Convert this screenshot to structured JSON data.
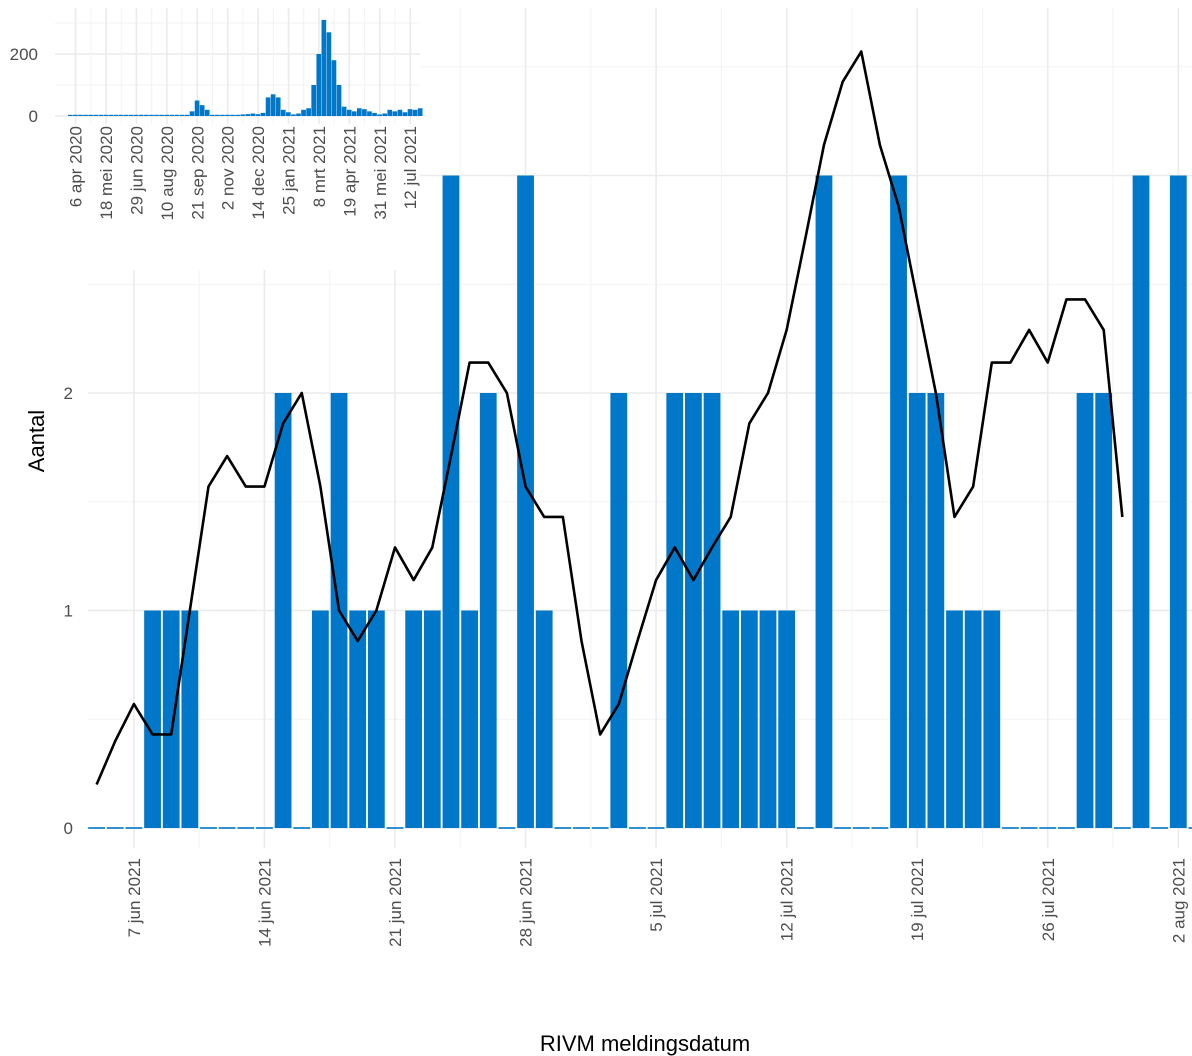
{
  "chart_data": [
    {
      "type": "bar",
      "role": "main",
      "xlabel": "RIVM meldingsdatum",
      "ylabel": "Aantal",
      "ylim": [
        0,
        3
      ],
      "y_ticks": [
        0,
        1,
        2,
        3
      ],
      "grid": true,
      "bar_color": "#0077c8",
      "line_color": "#000000",
      "x_ticks": [
        {
          "day": 2,
          "label": "7 jun 2021"
        },
        {
          "day": 9,
          "label": "14 jun 2021"
        },
        {
          "day": 16,
          "label": "21 jun 2021"
        },
        {
          "day": 23,
          "label": "28 jun 2021"
        },
        {
          "day": 30,
          "label": "5 jul 2021"
        },
        {
          "day": 37,
          "label": "12 jul 2021"
        },
        {
          "day": 44,
          "label": "19 jul 2021"
        },
        {
          "day": 51,
          "label": "26 jul 2021"
        },
        {
          "day": 58,
          "label": "2 aug 2021"
        }
      ],
      "bars": [
        0,
        0,
        0,
        1,
        1,
        1,
        0,
        0,
        0,
        0,
        2,
        0,
        1,
        2,
        1,
        1,
        0,
        1,
        1,
        3,
        1,
        2,
        0,
        3,
        1,
        0,
        0,
        0,
        2,
        0,
        0,
        2,
        2,
        2,
        1,
        1,
        1,
        1,
        0,
        3,
        0,
        0,
        0,
        3,
        2,
        2,
        1,
        1,
        1,
        0,
        0,
        0,
        0,
        2,
        2,
        0,
        3,
        0,
        3,
        0
      ],
      "moving_average": [
        0.2,
        0.4,
        0.57,
        0.43,
        0.43,
        1.0,
        1.57,
        1.71,
        1.57,
        1.57,
        1.86,
        2.0,
        1.57,
        1.0,
        0.86,
        1.0,
        1.29,
        1.14,
        1.29,
        1.71,
        2.14,
        2.14,
        2.0,
        1.57,
        1.43,
        1.43,
        0.86,
        0.43,
        0.57,
        0.86,
        1.14,
        1.29,
        1.14,
        1.29,
        1.43,
        1.86,
        2.0,
        2.29,
        2.71,
        3.14,
        3.43,
        3.57,
        3.14,
        2.86,
        2.43,
        2.0,
        1.43,
        1.57,
        2.14,
        2.14,
        2.29,
        2.14,
        2.43,
        2.43,
        2.29,
        1.43
      ]
    },
    {
      "type": "bar",
      "role": "inset",
      "ylim": [
        0,
        320
      ],
      "y_ticks": [
        0,
        200
      ],
      "y_tick_labels": [
        "0",
        "200"
      ],
      "bar_color": "#0077c8",
      "x_ticks": [
        {
          "week": 1,
          "label": "6 apr 2020"
        },
        {
          "week": 7,
          "label": "18 mei 2020"
        },
        {
          "week": 13,
          "label": "29 jun 2020"
        },
        {
          "week": 19,
          "label": "10 aug 2020"
        },
        {
          "week": 25,
          "label": "21 sep 2020"
        },
        {
          "week": 31,
          "label": "2 nov 2020"
        },
        {
          "week": 37,
          "label": "14 dec 2020"
        },
        {
          "week": 43,
          "label": "25 jan 2021"
        },
        {
          "week": 49,
          "label": "8 mrt 2021"
        },
        {
          "week": 55,
          "label": "19 apr 2021"
        },
        {
          "week": 61,
          "label": "31 mei 2021"
        },
        {
          "week": 67,
          "label": "12 jul 2021"
        }
      ],
      "values": [
        0,
        0,
        0,
        1,
        0,
        0,
        0,
        0,
        0,
        0,
        0,
        0,
        0,
        1,
        0,
        0,
        0,
        0,
        0,
        1,
        0,
        0,
        1,
        2,
        15,
        50,
        35,
        20,
        3,
        2,
        2,
        1,
        1,
        2,
        5,
        6,
        8,
        6,
        10,
        60,
        70,
        60,
        20,
        12,
        5,
        8,
        20,
        25,
        100,
        200,
        310,
        270,
        180,
        100,
        30,
        20,
        15,
        25,
        22,
        15,
        10,
        5,
        8,
        20,
        15,
        20,
        12,
        22,
        20,
        25
      ]
    }
  ]
}
